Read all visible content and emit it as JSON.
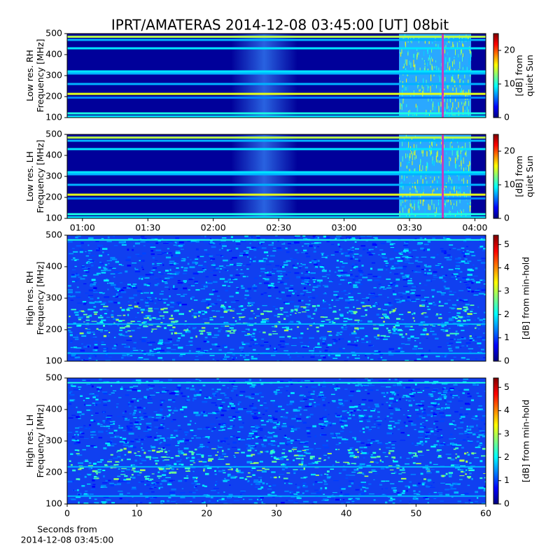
{
  "title": "IPRT/AMATERAS 2014-12-08 03:45:00 [UT]   08bit",
  "chart_data": [
    {
      "type": "spectrogram",
      "ylabel": [
        "Low res. RH",
        "Frequency [MHz]"
      ],
      "ylim": [
        100,
        500
      ],
      "yticks": [
        100,
        200,
        300,
        400,
        500
      ],
      "xlim": [
        "00:53",
        "04:05"
      ],
      "colorbar_label": [
        "[dB] from",
        "quiet Sun"
      ],
      "clim": [
        0,
        25
      ],
      "cticks": [
        0,
        10,
        20
      ],
      "colormap": "jet"
    },
    {
      "type": "spectrogram",
      "ylabel": [
        "Low res. LH",
        "Frequency [MHz]"
      ],
      "ylim": [
        100,
        500
      ],
      "yticks": [
        100,
        200,
        300,
        400,
        500
      ],
      "xlim": [
        "00:53",
        "04:05"
      ],
      "xticks": [
        "01:00",
        "01:30",
        "02:00",
        "02:30",
        "03:00",
        "03:30",
        "04:00"
      ],
      "colorbar_label": [
        "[dB] from",
        "quiet Sun"
      ],
      "clim": [
        0,
        25
      ],
      "cticks": [
        0,
        10,
        20
      ],
      "colormap": "jet"
    },
    {
      "type": "spectrogram",
      "ylabel": [
        "High res. RH",
        "Frequency [MHz]"
      ],
      "ylim": [
        100,
        500
      ],
      "yticks": [
        100,
        200,
        300,
        400,
        500
      ],
      "xlim": [
        0,
        60
      ],
      "colorbar_label": [
        "[dB] from min-hold"
      ],
      "clim": [
        0,
        5.4
      ],
      "cticks": [
        0,
        1,
        2,
        3,
        4,
        5
      ],
      "colormap": "jet"
    },
    {
      "type": "spectrogram",
      "ylabel": [
        "High res. LH",
        "Frequency [MHz]"
      ],
      "ylim": [
        100,
        500
      ],
      "yticks": [
        100,
        200,
        300,
        400,
        500
      ],
      "xlim": [
        0,
        60
      ],
      "xticks": [
        0,
        10,
        20,
        30,
        40,
        50,
        60
      ],
      "xlabel": [
        "Seconds from",
        "2014-12-08 03:45:00"
      ],
      "colorbar_label": [
        "[dB] from min-hold"
      ],
      "clim": [
        0,
        5.4
      ],
      "cticks": [
        0,
        1,
        2,
        3,
        4,
        5
      ],
      "colormap": "jet"
    }
  ]
}
